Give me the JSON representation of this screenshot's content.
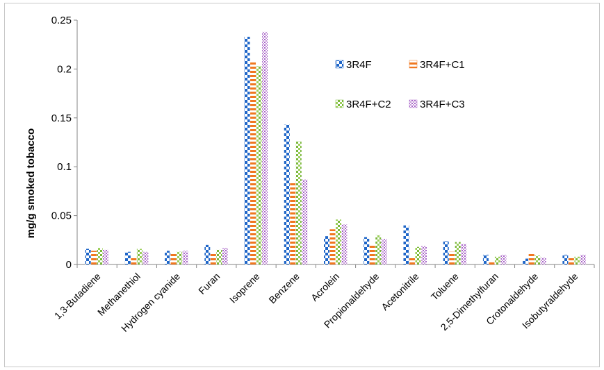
{
  "chart_data": {
    "type": "bar",
    "title": "",
    "xlabel": "",
    "ylabel": "mg/g smoked tobacco",
    "ylim": [
      0,
      0.25
    ],
    "yticks": [
      "0",
      "0.05",
      "0.1",
      "0.15",
      "0.2",
      "0.25"
    ],
    "grid": false,
    "legend_position": "top-right",
    "categories": [
      "1,3-Butadiene",
      "Methanethiol",
      "Hydrogen cyanide",
      "Furan",
      "Isoprene",
      "Benzene",
      "Acrolein",
      "Propionaldehyde",
      "Acetonitrile",
      "Toluene",
      "2,5-Dimethylfuran",
      "Crotonaldehyde",
      "Isobutyraldehyde"
    ],
    "series": [
      {
        "name": "3R4F",
        "color": "#1f66c8",
        "pattern": "checker",
        "values": [
          0.016,
          0.013,
          0.014,
          0.02,
          0.233,
          0.143,
          0.029,
          0.028,
          0.04,
          0.024,
          0.01,
          0.006,
          0.01
        ]
      },
      {
        "name": "3R4F+C1",
        "color": "#f07820",
        "pattern": "horizontal-stripes",
        "values": [
          0.014,
          0.008,
          0.012,
          0.011,
          0.207,
          0.084,
          0.036,
          0.02,
          0.008,
          0.013,
          0.003,
          0.012,
          0.007
        ]
      },
      {
        "name": "3R4F+C2",
        "color": "#7ab83a",
        "pattern": "dots",
        "values": [
          0.017,
          0.016,
          0.013,
          0.015,
          0.203,
          0.126,
          0.046,
          0.03,
          0.018,
          0.023,
          0.008,
          0.009,
          0.008
        ]
      },
      {
        "name": "3R4F+C3",
        "color": "#a764c8",
        "pattern": "fine-dots",
        "values": [
          0.015,
          0.013,
          0.014,
          0.017,
          0.238,
          0.087,
          0.041,
          0.026,
          0.019,
          0.021,
          0.01,
          0.007,
          0.01
        ]
      }
    ]
  }
}
